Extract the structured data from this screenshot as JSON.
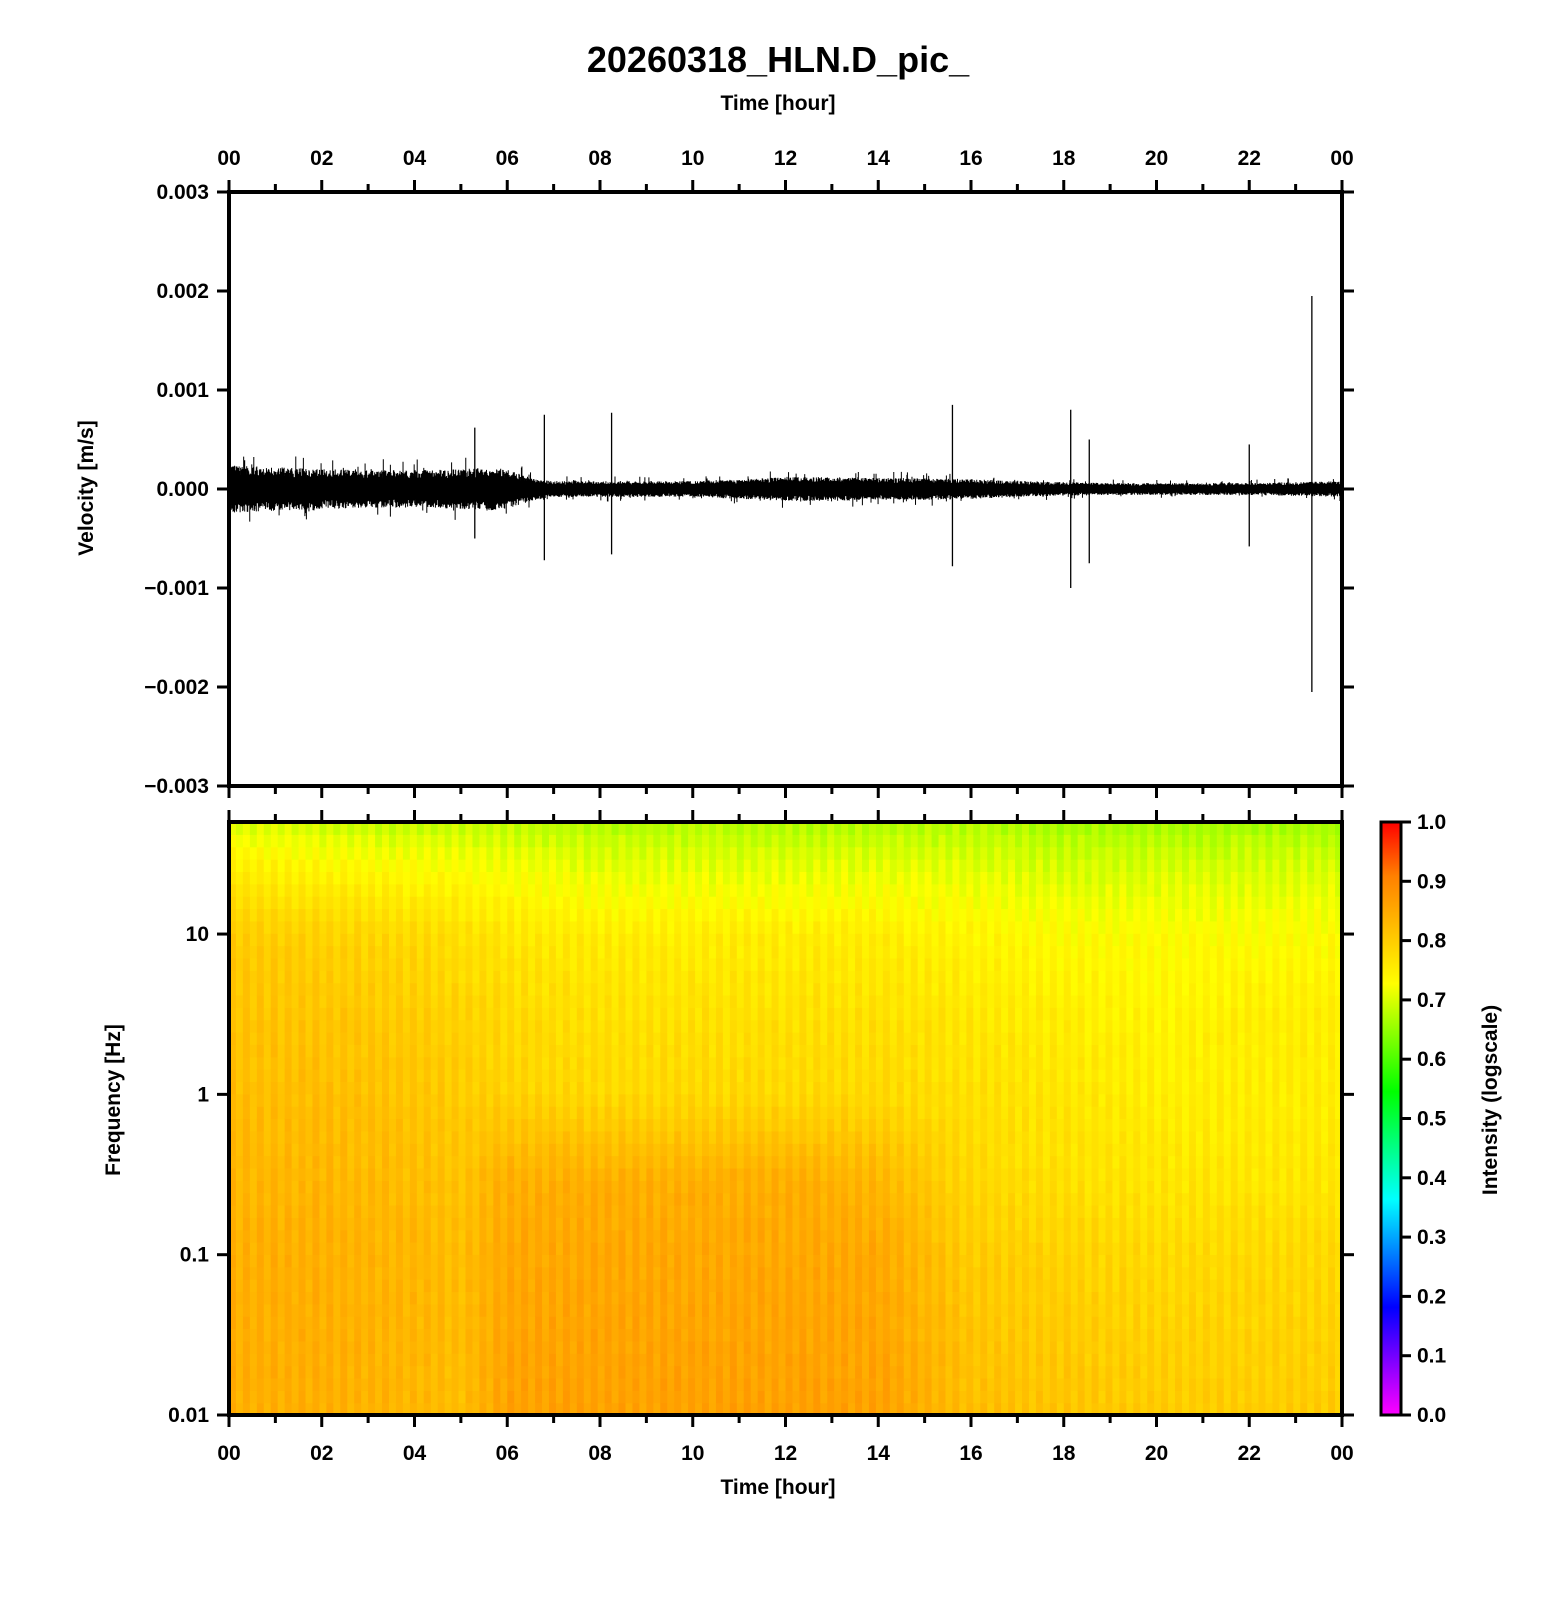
{
  "title": "20260318_HLN.D_pic_",
  "chart_data": [
    {
      "type": "line",
      "name": "waveform",
      "xlabel": "Time [hour]",
      "ylabel": "Velocity [m/s]",
      "xlim": [
        0,
        24
      ],
      "ylim": [
        -0.003,
        0.003
      ],
      "x_ticks": [
        "00",
        "02",
        "04",
        "06",
        "08",
        "10",
        "12",
        "14",
        "16",
        "18",
        "20",
        "22",
        "00"
      ],
      "y_ticks": [
        "0.003",
        "0.002",
        "0.001",
        "0.000",
        "−0.001",
        "−0.002",
        "−0.003"
      ],
      "envelope": {
        "x": [
          0,
          1,
          2,
          3,
          4,
          5,
          5.5,
          6,
          6.5,
          7,
          8,
          9,
          10,
          11,
          12,
          13,
          14,
          15,
          16,
          17,
          18,
          19,
          20,
          21,
          22,
          23,
          24
        ],
        "amplitude": [
          0.00024,
          0.00022,
          0.0002,
          0.00019,
          0.00019,
          0.0002,
          0.00022,
          0.0002,
          0.00012,
          8e-05,
          8e-05,
          8e-05,
          8e-05,
          0.0001,
          0.00012,
          0.00012,
          0.00011,
          0.00011,
          0.0001,
          8e-05,
          7e-05,
          6e-05,
          6e-05,
          6e-05,
          6e-05,
          7e-05,
          8e-05
        ]
      },
      "spikes": [
        {
          "x": 6.8,
          "max": 0.00075,
          "min": -0.00072
        },
        {
          "x": 8.25,
          "max": 0.00077,
          "min": -0.00066
        },
        {
          "x": 15.6,
          "max": 0.00085,
          "min": -0.00078
        },
        {
          "x": 18.15,
          "max": 0.0008,
          "min": -0.001
        },
        {
          "x": 18.55,
          "max": 0.0005,
          "min": -0.00075
        },
        {
          "x": 23.35,
          "max": 0.00195,
          "min": -0.00205
        },
        {
          "x": 22.0,
          "max": 0.00045,
          "min": -0.00058
        },
        {
          "x": 5.3,
          "max": 0.00062,
          "min": -0.0005
        }
      ]
    },
    {
      "type": "heatmap",
      "name": "spectrogram",
      "xlabel": "Time [hour]",
      "ylabel": "Frequency [Hz]",
      "xlim": [
        0,
        24
      ],
      "ylim": [
        0.01,
        50
      ],
      "yscale": "log",
      "x_ticks": [
        "00",
        "02",
        "04",
        "06",
        "08",
        "10",
        "12",
        "14",
        "16",
        "18",
        "20",
        "22",
        "00"
      ],
      "y_ticks": [
        {
          "label": "10",
          "value": 10
        },
        {
          "label": "1",
          "value": 1
        },
        {
          "label": "0.1",
          "value": 0.1
        },
        {
          "label": "0.01",
          "value": 0.01
        }
      ],
      "colorbar": {
        "label": "Intensity (logscale)",
        "range": [
          0,
          1
        ],
        "ticks": [
          "1.0",
          "0.9",
          "0.8",
          "0.7",
          "0.6",
          "0.5",
          "0.4",
          "0.3",
          "0.2",
          "0.1",
          "0.0"
        ],
        "colors": [
          "#ff00ff",
          "#8000ff",
          "#0000ff",
          "#0080ff",
          "#00ffff",
          "#00ff80",
          "#00ff00",
          "#80ff00",
          "#ffff00",
          "#ffc000",
          "#ff8000",
          "#ff0000"
        ]
      },
      "intensity_profile": {
        "times": [
          0,
          2,
          4,
          5,
          6,
          8,
          10,
          12,
          14,
          16,
          18,
          20,
          22,
          24
        ],
        "frequencies": [
          0.01,
          0.1,
          0.3,
          1,
          3,
          10,
          30,
          50
        ],
        "values": [
          [
            0.84,
            0.84,
            0.83,
            0.82,
            0.81,
            0.8,
            0.74,
            0.7
          ],
          [
            0.84,
            0.84,
            0.83,
            0.82,
            0.81,
            0.79,
            0.73,
            0.69
          ],
          [
            0.83,
            0.83,
            0.82,
            0.81,
            0.8,
            0.78,
            0.72,
            0.68
          ],
          [
            0.82,
            0.82,
            0.81,
            0.8,
            0.79,
            0.77,
            0.72,
            0.68
          ],
          [
            0.86,
            0.85,
            0.84,
            0.79,
            0.78,
            0.76,
            0.71,
            0.68
          ],
          [
            0.86,
            0.85,
            0.84,
            0.78,
            0.77,
            0.75,
            0.7,
            0.67
          ],
          [
            0.86,
            0.85,
            0.84,
            0.78,
            0.77,
            0.75,
            0.7,
            0.67
          ],
          [
            0.86,
            0.85,
            0.84,
            0.78,
            0.77,
            0.75,
            0.7,
            0.67
          ],
          [
            0.86,
            0.85,
            0.83,
            0.78,
            0.77,
            0.75,
            0.7,
            0.67
          ],
          [
            0.82,
            0.8,
            0.78,
            0.77,
            0.76,
            0.74,
            0.7,
            0.67
          ],
          [
            0.81,
            0.79,
            0.77,
            0.76,
            0.75,
            0.73,
            0.69,
            0.66
          ],
          [
            0.8,
            0.78,
            0.76,
            0.75,
            0.74,
            0.73,
            0.69,
            0.66
          ],
          [
            0.8,
            0.78,
            0.76,
            0.75,
            0.75,
            0.73,
            0.69,
            0.66
          ],
          [
            0.8,
            0.78,
            0.76,
            0.75,
            0.75,
            0.73,
            0.69,
            0.66
          ]
        ]
      }
    }
  ]
}
